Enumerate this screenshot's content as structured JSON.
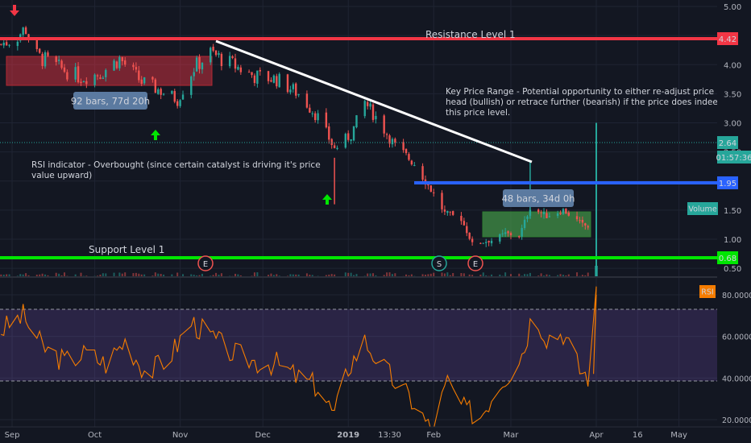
{
  "chart_data": [
    {
      "type": "candlestick",
      "panel": "price",
      "xlabels": [
        "Sep",
        "Oct",
        "Nov",
        "Dec",
        "2019",
        "13:30",
        "Feb",
        "Mar",
        "Apr",
        "16",
        "May"
      ],
      "yticks": [
        "5.00",
        "4.00",
        "3.50",
        "3.00",
        "2.50",
        "1.50",
        "1.00",
        "0.50"
      ],
      "ylim": [
        0.45,
        5.05
      ],
      "grid": true,
      "price_labels": {
        "resistance": "4.42",
        "last_price": "2.64",
        "countdown": "01:57:36",
        "key_level": "1.95",
        "support": "0.68",
        "volume_tag": "Volume"
      },
      "annotations": {
        "resistance": "Resistance Level 1",
        "support": "Support Level 1",
        "key_range": [
          "Key Price Range - Potential opportunity to either re-adjust price and",
          "head (bullish) or retrace further (bearish) if the price does indeed hit",
          "this price level."
        ],
        "rsi_note": [
          "RSI indicator - Overbought  (since certain catalyst is driving it's price",
          "value upward)"
        ],
        "range_1": "92 bars, 77d 20h",
        "range_2": "48 bars, 34d 0h",
        "events": [
          "E",
          "S",
          "E"
        ]
      },
      "levels": {
        "resistance": 4.42,
        "key": 1.95,
        "support": 0.68,
        "last": 2.64
      },
      "trendline": [
        {
          "x": "2018-11-16",
          "y": 4.38
        },
        {
          "x": "2019-03-08",
          "y": 2.3
        }
      ],
      "path": [
        {
          "d": "2018-08-28",
          "p": 4.35
        },
        {
          "d": "2018-09-03",
          "p": 4.5
        },
        {
          "d": "2018-09-06",
          "p": 4.62
        },
        {
          "d": "2018-09-10",
          "p": 4.15
        },
        {
          "d": "2018-09-18",
          "p": 3.95
        },
        {
          "d": "2018-09-26",
          "p": 3.78
        },
        {
          "d": "2018-10-03",
          "p": 3.85
        },
        {
          "d": "2018-10-10",
          "p": 4.1
        },
        {
          "d": "2018-10-18",
          "p": 3.7
        },
        {
          "d": "2018-10-25",
          "p": 3.55
        },
        {
          "d": "2018-10-31",
          "p": 3.4
        },
        {
          "d": "2018-11-06",
          "p": 3.95
        },
        {
          "d": "2018-11-12",
          "p": 4.2
        },
        {
          "d": "2018-11-20",
          "p": 4.0
        },
        {
          "d": "2018-11-28",
          "p": 3.8
        },
        {
          "d": "2018-12-06",
          "p": 3.75
        },
        {
          "d": "2018-12-14",
          "p": 3.5
        },
        {
          "d": "2018-12-21",
          "p": 3.1
        },
        {
          "d": "2018-12-27",
          "p": 2.55
        },
        {
          "d": "2019-01-02",
          "p": 2.8
        },
        {
          "d": "2019-01-07",
          "p": 3.35
        },
        {
          "d": "2019-01-11",
          "p": 3.1
        },
        {
          "d": "2019-01-18",
          "p": 2.6
        },
        {
          "d": "2019-01-25",
          "p": 2.3
        },
        {
          "d": "2019-01-31",
          "p": 1.85
        },
        {
          "d": "2019-02-05",
          "p": 1.45
        },
        {
          "d": "2019-02-11",
          "p": 1.35
        },
        {
          "d": "2019-02-15",
          "p": 0.92
        },
        {
          "d": "2019-02-22",
          "p": 0.98
        },
        {
          "d": "2019-02-27",
          "p": 1.1
        },
        {
          "d": "2019-03-04",
          "p": 1.05
        },
        {
          "d": "2019-03-08",
          "p": 1.55
        },
        {
          "d": "2019-03-14",
          "p": 1.4
        },
        {
          "d": "2019-03-20",
          "p": 1.5
        },
        {
          "d": "2019-03-27",
          "p": 1.25
        },
        {
          "d": "2019-03-30",
          "p": 1.2
        },
        {
          "d": "2019-04-01",
          "p": 2.64
        }
      ]
    },
    {
      "type": "line",
      "panel": "rsi",
      "title": "RSI",
      "yticks": [
        "80.0000",
        "60.0000",
        "40.0000",
        "20.0000"
      ],
      "ylim": [
        12,
        86
      ],
      "bands": [
        30,
        70
      ],
      "series": [
        {
          "values": [
            {
              "d": "2018-08-28",
              "v": 63
            },
            {
              "d": "2018-09-05",
              "v": 70
            },
            {
              "d": "2018-09-12",
              "v": 55
            },
            {
              "d": "2018-09-20",
              "v": 48
            },
            {
              "d": "2018-09-28",
              "v": 52
            },
            {
              "d": "2018-10-05",
              "v": 47
            },
            {
              "d": "2018-10-12",
              "v": 58
            },
            {
              "d": "2018-10-20",
              "v": 42
            },
            {
              "d": "2018-10-28",
              "v": 50
            },
            {
              "d": "2018-11-05",
              "v": 67
            },
            {
              "d": "2018-11-12",
              "v": 60
            },
            {
              "d": "2018-11-20",
              "v": 52
            },
            {
              "d": "2018-11-28",
              "v": 48
            },
            {
              "d": "2018-12-06",
              "v": 47
            },
            {
              "d": "2018-12-14",
              "v": 40
            },
            {
              "d": "2018-12-21",
              "v": 36
            },
            {
              "d": "2018-12-27",
              "v": 22
            },
            {
              "d": "2019-01-01",
              "v": 45
            },
            {
              "d": "2019-01-07",
              "v": 58
            },
            {
              "d": "2019-01-12",
              "v": 48
            },
            {
              "d": "2019-01-18",
              "v": 38
            },
            {
              "d": "2019-01-25",
              "v": 28
            },
            {
              "d": "2019-01-31",
              "v": 15
            },
            {
              "d": "2019-02-06",
              "v": 38
            },
            {
              "d": "2019-02-12",
              "v": 25
            },
            {
              "d": "2019-02-18",
              "v": 22
            },
            {
              "d": "2019-02-25",
              "v": 38
            },
            {
              "d": "2019-03-02",
              "v": 45
            },
            {
              "d": "2019-03-06",
              "v": 55
            },
            {
              "d": "2019-03-09",
              "v": 73
            },
            {
              "d": "2019-03-14",
              "v": 60
            },
            {
              "d": "2019-03-20",
              "v": 62
            },
            {
              "d": "2019-03-26",
              "v": 44
            },
            {
              "d": "2019-03-30",
              "v": 40
            },
            {
              "d": "2019-04-01",
              "v": 80
            }
          ]
        }
      ]
    }
  ]
}
